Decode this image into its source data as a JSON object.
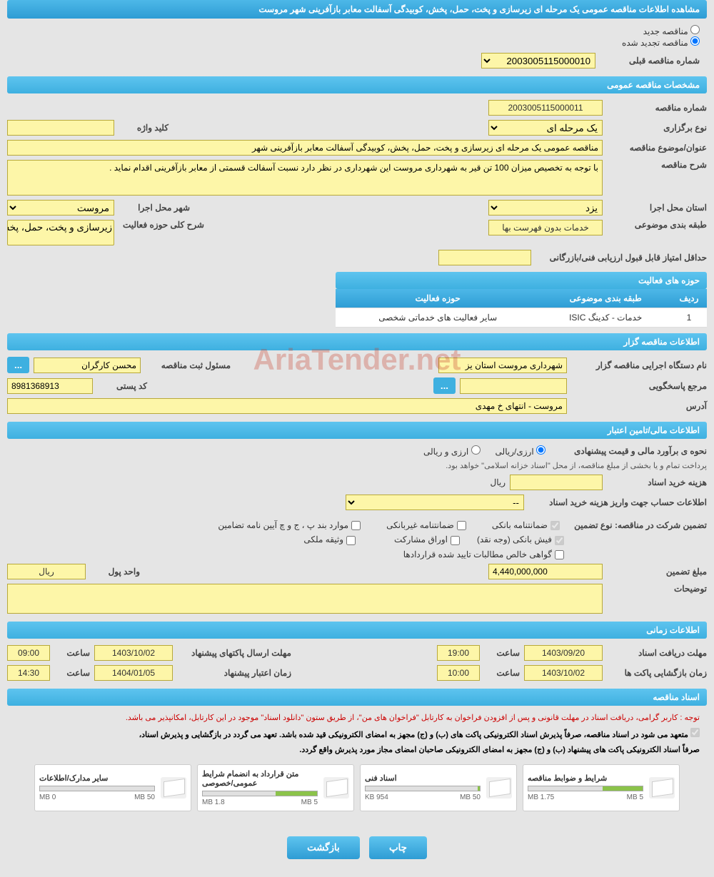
{
  "header_title": "مشاهده اطلاعات مناقصه عمومی یک مرحله ای زیرسازی و پخت، حمل، پخش، کوبیدگی آسفالت معابر بازآفرینی شهر مروست",
  "status": {
    "new_label": "مناقصه جدید",
    "renewed_label": "مناقصه تجدید شده"
  },
  "prev_number": {
    "label": "شماره مناقصه قبلی",
    "value": "2003005115000010"
  },
  "sections": {
    "general": "مشخصات مناقصه عمومی",
    "organizer": "اطلاعات مناقصه گزار",
    "financial": "اطلاعات مالی/تامین اعتبار",
    "timing": "اطلاعات زمانی",
    "docs": "اسناد مناقصه"
  },
  "general": {
    "number_label": "شماره مناقصه",
    "number_value": "2003005115000011",
    "type_label": "نوع برگزاری",
    "type_value": "یک مرحله ای",
    "keyword_label": "کلید واژه",
    "subject_label": "عنوان/موضوع مناقصه",
    "subject_value": "مناقصه عمومی یک مرحله ای زیرسازی و پخت، حمل، پخش، کوبیدگی آسفالت معابر بازآفرینی شهر",
    "desc_label": "شرح مناقصه",
    "desc_value": "با توجه به تخصیص میزان 100 تن قیر به شهرداری مروست این شهرداری در نظر دارد نسبت آسفالت قسمتی از معابر بازآفرینی اقدام نماید .",
    "province_label": "استان محل اجرا",
    "province_value": "یزد",
    "city_label": "شهر محل اجرا",
    "city_value": "مروست",
    "category_label": "طبقه بندی موضوعی",
    "category_value": "خدمات بدون فهرست بها",
    "scope_label": "شرح کلی حوزه فعالیت",
    "scope_value": "زیرسازی و پخت، حمل، پخش، کوبیدگی آسفالت",
    "min_score_label": "حداقل امتیاز قابل قبول ارزیابی فنی/بازرگانی"
  },
  "activity_table": {
    "title": "حوزه های فعالیت",
    "col_row": "ردیف",
    "col_cat": "طبقه بندی موضوعی",
    "col_scope": "حوزه فعالیت",
    "row1_num": "1",
    "row1_cat": "خدمات - کدینگ ISIC",
    "row1_scope": "سایر فعالیت های خدماتی شخصی"
  },
  "organizer": {
    "agency_label": "نام دستگاه اجرایی مناقصه گزار",
    "agency_value": "شهرداری مروست استان یز",
    "registrar_label": "مسئول ثبت مناقصه",
    "registrar_value": "محسن کارگران",
    "responder_label": "مرجع پاسخگویی",
    "postal_label": "کد پستی",
    "postal_value": "8981368913",
    "address_label": "آدرس",
    "address_value": "مروست - انتهای خ مهدی"
  },
  "financial": {
    "estimate_label": "نحوه ی برآورد مالی و قیمت پیشنهادی",
    "currency_opt1": "ارزی/ریالی",
    "currency_opt2": "ارزی و ریالی",
    "treasury_note": "پرداخت تمام و یا بخشی از مبلغ مناقصه، از محل \"اسناد خزانه اسلامی\" خواهد بود.",
    "doc_cost_label": "هزینه خرید اسناد",
    "rial_unit": "ریال",
    "account_label": "اطلاعات حساب جهت واریز هزینه خرید اسناد",
    "account_value": "--",
    "guarantee_intro": "تضمین شرکت در مناقصه:   نوع تضمین",
    "g1": "ضمانتنامه بانکی",
    "g2": "ضمانتنامه غیربانکی",
    "g3": "موارد بند پ ، ج و چ آیین نامه تضامین",
    "g4": "فیش بانکی (وجه نقد)",
    "g5": "اوراق مشارکت",
    "g6": "وثیقه ملکی",
    "g7": "گواهی خالص مطالبات تایید شده قراردادها",
    "amount_label": "مبلغ تضمین",
    "amount_value": "4,440,000,000",
    "unit_label": "واحد پول",
    "unit_value": "ریال",
    "notes_label": "توضیحات"
  },
  "timing": {
    "receive_label": "مهلت دریافت اسناد",
    "receive_date": "1403/09/20",
    "time_label": "ساعت",
    "receive_time": "19:00",
    "send_label": "مهلت ارسال پاکتهای پیشنهاد",
    "send_date": "1403/10/02",
    "send_time": "09:00",
    "open_label": "زمان بازگشایی پاکت ها",
    "open_date": "1403/10/02",
    "open_time": "10:00",
    "validity_label": "زمان اعتبار پیشنهاد",
    "validity_date": "1404/01/05",
    "validity_time": "14:30"
  },
  "docs": {
    "red_note": "توجه : کاربر گرامی، دریافت اسناد در مهلت قانونی و پس از افزودن فراخوان به کارتابل \"فراخوان های من\"، از طریق ستون \"دانلود اسناد\" موجود در این کارتابل، امکانپذیر می باشد.",
    "black_note1": "متعهد می شود در اسناد مناقصه، صرفاً پذیرش اسناد الکترونیکی پاکت های (ب) و (ج) مجهز به امضای الکترونیکی قید شده باشد. تعهد می گردد در بازگشایی و پذیرش اسناد،",
    "black_note2": "صرفاً اسناد الکترونیکی پاکت های پیشنهاد (ب) و (ج) مجهز به امضای الکترونیکی صاحبان امضای مجاز مورد پذیرش واقع گردد.",
    "files": [
      {
        "title": "شرایط و ضوابط مناقصه",
        "used": "1.75 MB",
        "cap": "5 MB",
        "pct": 35
      },
      {
        "title": "اسناد فنی",
        "used": "954 KB",
        "cap": "50 MB",
        "pct": 2
      },
      {
        "title": "متن قرارداد به انضمام شرایط عمومی/خصوصی",
        "used": "1.8 MB",
        "cap": "5 MB",
        "pct": 36
      },
      {
        "title": "سایر مدارک/اطلاعات",
        "used": "0 MB",
        "cap": "50 MB",
        "pct": 0
      }
    ]
  },
  "buttons": {
    "print": "چاپ",
    "back": "بازگشت"
  },
  "watermark": "AriaTender.net",
  "colors": {
    "bar": "#3eb0e0",
    "field_bg": "#fdf6a8",
    "field_border": "#b8a93a"
  }
}
